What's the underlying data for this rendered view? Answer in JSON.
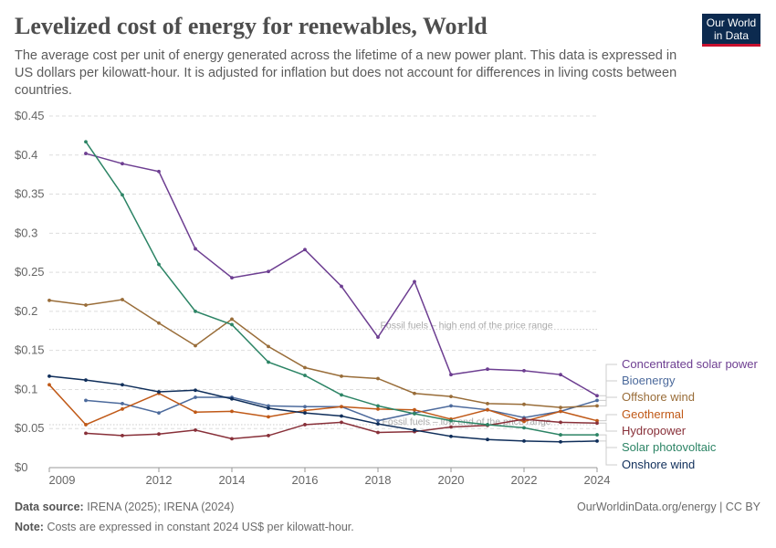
{
  "header": {
    "title": "Levelized cost of energy for renewables, World",
    "subtitle": "The average cost per unit of energy generated across the lifetime of a new power plant. This data is expressed in US dollars per kilowatt-hour. It is adjusted for inflation but does not account for differences in living costs between countries.",
    "logo": "Our World in Data"
  },
  "footer": {
    "source_label": "Data source:",
    "source": "IRENA (2025); IRENA (2024)",
    "url": "OurWorldinData.org/energy | CC BY",
    "note_label": "Note:",
    "note": "Costs are expressed in constant 2024 US$ per kilowatt-hour."
  },
  "chart_data": {
    "type": "line",
    "title": "Levelized cost of energy for renewables, World",
    "xlim": [
      2009,
      2024
    ],
    "ylim": [
      0,
      0.45
    ],
    "x_ticks": [
      2009,
      2012,
      2014,
      2016,
      2018,
      2020,
      2022,
      2024
    ],
    "y_ticks": [
      0,
      0.05,
      0.1,
      0.15,
      0.2,
      0.25,
      0.3,
      0.35,
      0.4,
      0.45
    ],
    "y_tick_labels": [
      "$0",
      "$0.05",
      "$0.1",
      "$0.15",
      "$0.2",
      "$0.25",
      "$0.3",
      "$0.35",
      "$0.4",
      "$0.45"
    ],
    "grid": "horizontal dashed",
    "legend": "right, line end labels",
    "reference_lines": [
      {
        "label": "Fossil fuels – high end of the price range",
        "value": 0.177
      },
      {
        "label": "Fossil fuels – low end of the price range",
        "value": 0.055
      }
    ],
    "series": [
      {
        "name": "Concentrated solar power",
        "color": "#6d3e91",
        "start": 2010,
        "values": [
          0.402,
          0.389,
          0.379,
          0.28,
          0.243,
          0.251,
          0.279,
          0.232,
          0.167,
          0.238,
          0.119,
          0.126,
          0.124,
          0.119,
          0.092
        ]
      },
      {
        "name": "Bioenergy",
        "color": "#4c6a9c",
        "start": 2010,
        "values": [
          0.086,
          0.082,
          0.07,
          0.09,
          0.09,
          0.079,
          0.078,
          0.078,
          0.06,
          0.07,
          0.079,
          0.074,
          0.064,
          0.072,
          0.086
        ]
      },
      {
        "name": "Offshore wind",
        "color": "#996d39",
        "start": 2009,
        "values": [
          0.214,
          0.208,
          0.215,
          0.185,
          0.156,
          0.19,
          0.155,
          0.128,
          0.117,
          0.114,
          0.095,
          0.091,
          0.082,
          0.081,
          0.077,
          0.079
        ]
      },
      {
        "name": "Geothermal",
        "color": "#c05917",
        "start": 2009,
        "values": [
          0.106,
          0.055,
          0.075,
          0.095,
          0.071,
          0.072,
          0.065,
          0.073,
          0.078,
          0.075,
          0.074,
          0.062,
          0.074,
          0.059,
          0.072,
          0.06
        ]
      },
      {
        "name": "Hydropower",
        "color": "#883039",
        "start": 2010,
        "values": [
          0.044,
          0.041,
          0.043,
          0.048,
          0.037,
          0.041,
          0.055,
          0.058,
          0.045,
          0.046,
          0.052,
          0.054,
          0.062,
          0.058,
          0.057
        ]
      },
      {
        "name": "Solar photovoltaic",
        "color": "#2c8465",
        "start": 2010,
        "values": [
          0.417,
          0.349,
          0.26,
          0.2,
          0.183,
          0.135,
          0.118,
          0.093,
          0.079,
          0.069,
          0.06,
          0.055,
          0.051,
          0.042,
          0.042
        ]
      },
      {
        "name": "Onshore wind",
        "color": "#0f2e5a",
        "start": 2009,
        "values": [
          0.117,
          0.112,
          0.106,
          0.097,
          0.099,
          0.088,
          0.076,
          0.07,
          0.066,
          0.056,
          0.048,
          0.04,
          0.036,
          0.034,
          0.033,
          0.034
        ]
      }
    ]
  }
}
